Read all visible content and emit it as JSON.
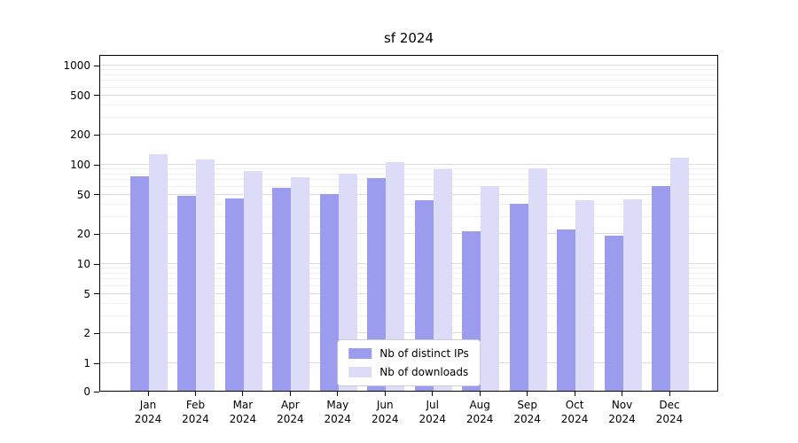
{
  "title": "sf 2024",
  "chart_data": {
    "type": "bar",
    "title": "sf 2024",
    "categories": [
      "Jan",
      "Feb",
      "Mar",
      "Apr",
      "May",
      "Jun",
      "Jul",
      "Aug",
      "Sep",
      "Oct",
      "Nov",
      "Dec"
    ],
    "year": "2024",
    "series": [
      {
        "name": "Nb of distinct IPs",
        "color": "#9c9cef",
        "values": [
          75,
          48,
          45,
          57,
          50,
          72,
          43,
          21,
          40,
          22,
          19,
          60
        ]
      },
      {
        "name": "Nb of downloads",
        "color": "#dcdcf8",
        "values": [
          125,
          112,
          85,
          73,
          80,
          105,
          88,
          60,
          91,
          43,
          44,
          115
        ]
      }
    ],
    "yscale": "symlog",
    "ymin": 0,
    "y_major_ticks": [
      0,
      1,
      2,
      5,
      10,
      20,
      50,
      100,
      200,
      500,
      1000
    ],
    "y_minor_ticks": [
      3,
      4,
      6,
      7,
      8,
      9,
      30,
      40,
      60,
      70,
      80,
      90,
      300,
      400,
      600,
      700,
      800,
      900
    ],
    "grid": true,
    "legend_position": "lower center"
  }
}
